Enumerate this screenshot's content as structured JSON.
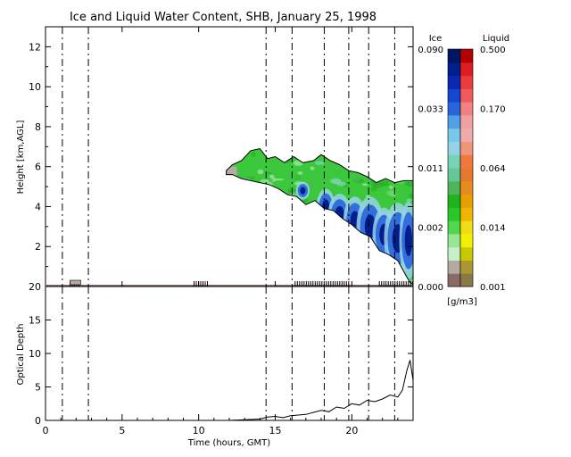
{
  "chart_data": [
    {
      "type": "heatmap",
      "title": "Ice and Liquid Water Content, SHB, January 25, 1998",
      "xlabel": "",
      "ylabel": "Height [km,AGL]",
      "xlim": [
        0,
        24
      ],
      "ylim": [
        0,
        13
      ],
      "xticks": [
        0,
        5,
        10,
        15,
        20
      ],
      "yticks": [
        2,
        4,
        6,
        8,
        10,
        12
      ],
      "vertical_lines": [
        1.1,
        2.8,
        14.4,
        16.1,
        18.2,
        19.8,
        21.1,
        22.8
      ],
      "cloud_top": [
        [
          11.8,
          5.8
        ],
        [
          12.2,
          6.1
        ],
        [
          12.8,
          6.3
        ],
        [
          13.4,
          6.8
        ],
        [
          14.0,
          6.9
        ],
        [
          14.5,
          6.4
        ],
        [
          15.0,
          6.5
        ],
        [
          15.6,
          6.2
        ],
        [
          16.2,
          6.5
        ],
        [
          16.8,
          6.2
        ],
        [
          17.5,
          6.3
        ],
        [
          18.0,
          6.6
        ],
        [
          18.6,
          6.3
        ],
        [
          19.2,
          6.1
        ],
        [
          19.8,
          5.8
        ],
        [
          20.4,
          5.7
        ],
        [
          21.0,
          5.5
        ],
        [
          21.6,
          5.2
        ],
        [
          22.2,
          5.4
        ],
        [
          22.8,
          5.2
        ],
        [
          23.4,
          5.3
        ],
        [
          24.0,
          5.3
        ]
      ],
      "cloud_base": [
        [
          11.8,
          5.6
        ],
        [
          12.2,
          5.6
        ],
        [
          12.8,
          5.4
        ],
        [
          13.4,
          5.3
        ],
        [
          14.0,
          5.2
        ],
        [
          14.6,
          5.1
        ],
        [
          15.2,
          4.9
        ],
        [
          15.8,
          4.6
        ],
        [
          16.4,
          4.5
        ],
        [
          17.0,
          4.1
        ],
        [
          17.6,
          4.3
        ],
        [
          18.2,
          3.9
        ],
        [
          18.8,
          3.8
        ],
        [
          19.4,
          3.4
        ],
        [
          20.0,
          3.1
        ],
        [
          20.6,
          2.7
        ],
        [
          21.2,
          2.5
        ],
        [
          21.8,
          1.8
        ],
        [
          22.4,
          1.6
        ],
        [
          23.0,
          1.3
        ],
        [
          23.5,
          0.6
        ],
        [
          23.8,
          0.2
        ],
        [
          24.0,
          0.1
        ]
      ],
      "ice_cores": [
        {
          "t": 18.3,
          "z": 4.0,
          "dt": 0.4,
          "dz": 0.6
        },
        {
          "t": 19.2,
          "z": 3.6,
          "dt": 0.5,
          "dz": 0.7
        },
        {
          "t": 20.2,
          "z": 3.3,
          "dt": 0.5,
          "dz": 0.8
        },
        {
          "t": 21.2,
          "z": 3.0,
          "dt": 0.6,
          "dz": 1.0
        },
        {
          "t": 22.1,
          "z": 2.6,
          "dt": 0.5,
          "dz": 0.9
        },
        {
          "t": 23.0,
          "z": 2.4,
          "dt": 0.6,
          "dz": 1.2
        },
        {
          "t": 23.7,
          "z": 2.3,
          "dt": 0.4,
          "dz": 1.3
        },
        {
          "t": 16.8,
          "z": 4.8,
          "dt": 0.3,
          "dz": 0.3
        }
      ],
      "surface_marks": [
        [
          1.6,
          2.3
        ],
        [
          9.7,
          10.7
        ],
        [
          16.3,
          19.8
        ],
        [
          21.8,
          24.0
        ]
      ]
    },
    {
      "type": "line",
      "title": "",
      "xlabel": "Time (hours, GMT)",
      "ylabel": "Optical Depth",
      "xlim": [
        0,
        24
      ],
      "ylim": [
        0,
        20
      ],
      "xticks": [
        0,
        5,
        10,
        15,
        20
      ],
      "yticks": [
        0,
        5,
        10,
        15,
        20
      ],
      "vertical_lines": [
        1.1,
        2.8,
        14.4,
        16.1,
        18.2,
        19.8,
        21.1,
        22.8
      ],
      "x": [
        0,
        12.0,
        13.0,
        14.0,
        14.5,
        15.0,
        15.5,
        16.0,
        16.5,
        17.0,
        17.5,
        18.0,
        18.5,
        19.0,
        19.5,
        20.0,
        20.5,
        21.0,
        21.5,
        22.0,
        22.5,
        23.0,
        23.3,
        23.6,
        23.8,
        24.0
      ],
      "y": [
        0,
        0,
        0.1,
        0.2,
        0.5,
        0.6,
        0.4,
        0.7,
        0.8,
        0.9,
        1.2,
        1.5,
        1.3,
        2.0,
        1.8,
        2.5,
        2.3,
        3.0,
        2.8,
        3.2,
        3.8,
        3.5,
        4.5,
        7.5,
        9.0,
        6.0
      ]
    }
  ],
  "colorbar": {
    "ice_label": "Ice",
    "liquid_label": "Liquid",
    "units": "[g/m3]",
    "ice_ticks": [
      "0.000",
      "0.002",
      "0.011",
      "0.033",
      "0.090"
    ],
    "liquid_ticks": [
      "0.001",
      "0.014",
      "0.064",
      "0.170",
      "0.500"
    ],
    "ice_colors": [
      "#8c6a64",
      "#b4aaa0",
      "#c8f0c8",
      "#96e696",
      "#50d750",
      "#28c828",
      "#1eb41e",
      "#50b45a",
      "#64c896",
      "#78d2b4",
      "#96d2e6",
      "#78c8ec",
      "#50a0e6",
      "#2864dc",
      "#1446d2",
      "#0a28b4",
      "#001e8c",
      "#001464"
    ],
    "liquid_colors": [
      "#8c7846",
      "#aa9632",
      "#c8c800",
      "#f0f000",
      "#f0dc14",
      "#f0b400",
      "#e6a000",
      "#e68c1e",
      "#e6782d",
      "#f0783c",
      "#f09678",
      "#f0aaaa",
      "#f0a0a0",
      "#f08282",
      "#f05a5a",
      "#eb3c3c",
      "#dc1e1e",
      "#b40000"
    ]
  }
}
